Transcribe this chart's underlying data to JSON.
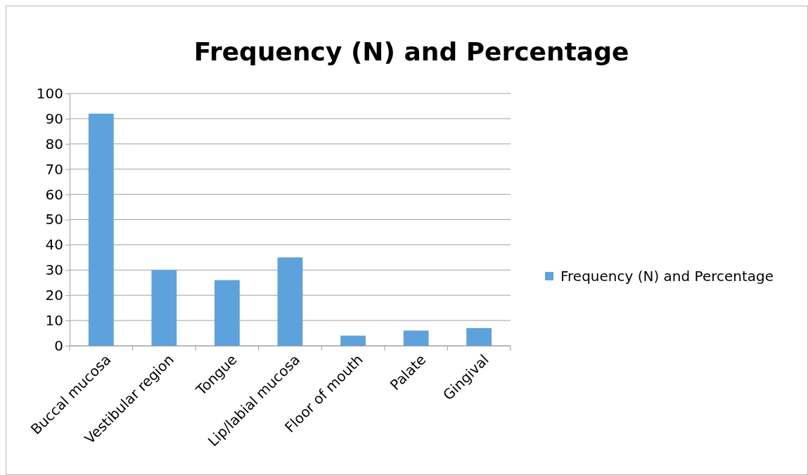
{
  "chart_data": {
    "type": "bar",
    "title": "Frequency (N) and Percentage",
    "categories": [
      "Buccal mucosa",
      "Vestibular region",
      "Tongue",
      "Lip/labial mucosa",
      "Floor of mouth",
      "Palate",
      "Gingival"
    ],
    "series": [
      {
        "name": "Frequency (N) and Percentage",
        "color": "#5ea2dc",
        "values": [
          92,
          30,
          26,
          35,
          4,
          6,
          7
        ]
      }
    ],
    "ylim": [
      0,
      100
    ],
    "yticks": [
      0,
      10,
      20,
      30,
      40,
      50,
      60,
      70,
      80,
      90,
      100
    ],
    "grid": "y",
    "legend": "right"
  }
}
